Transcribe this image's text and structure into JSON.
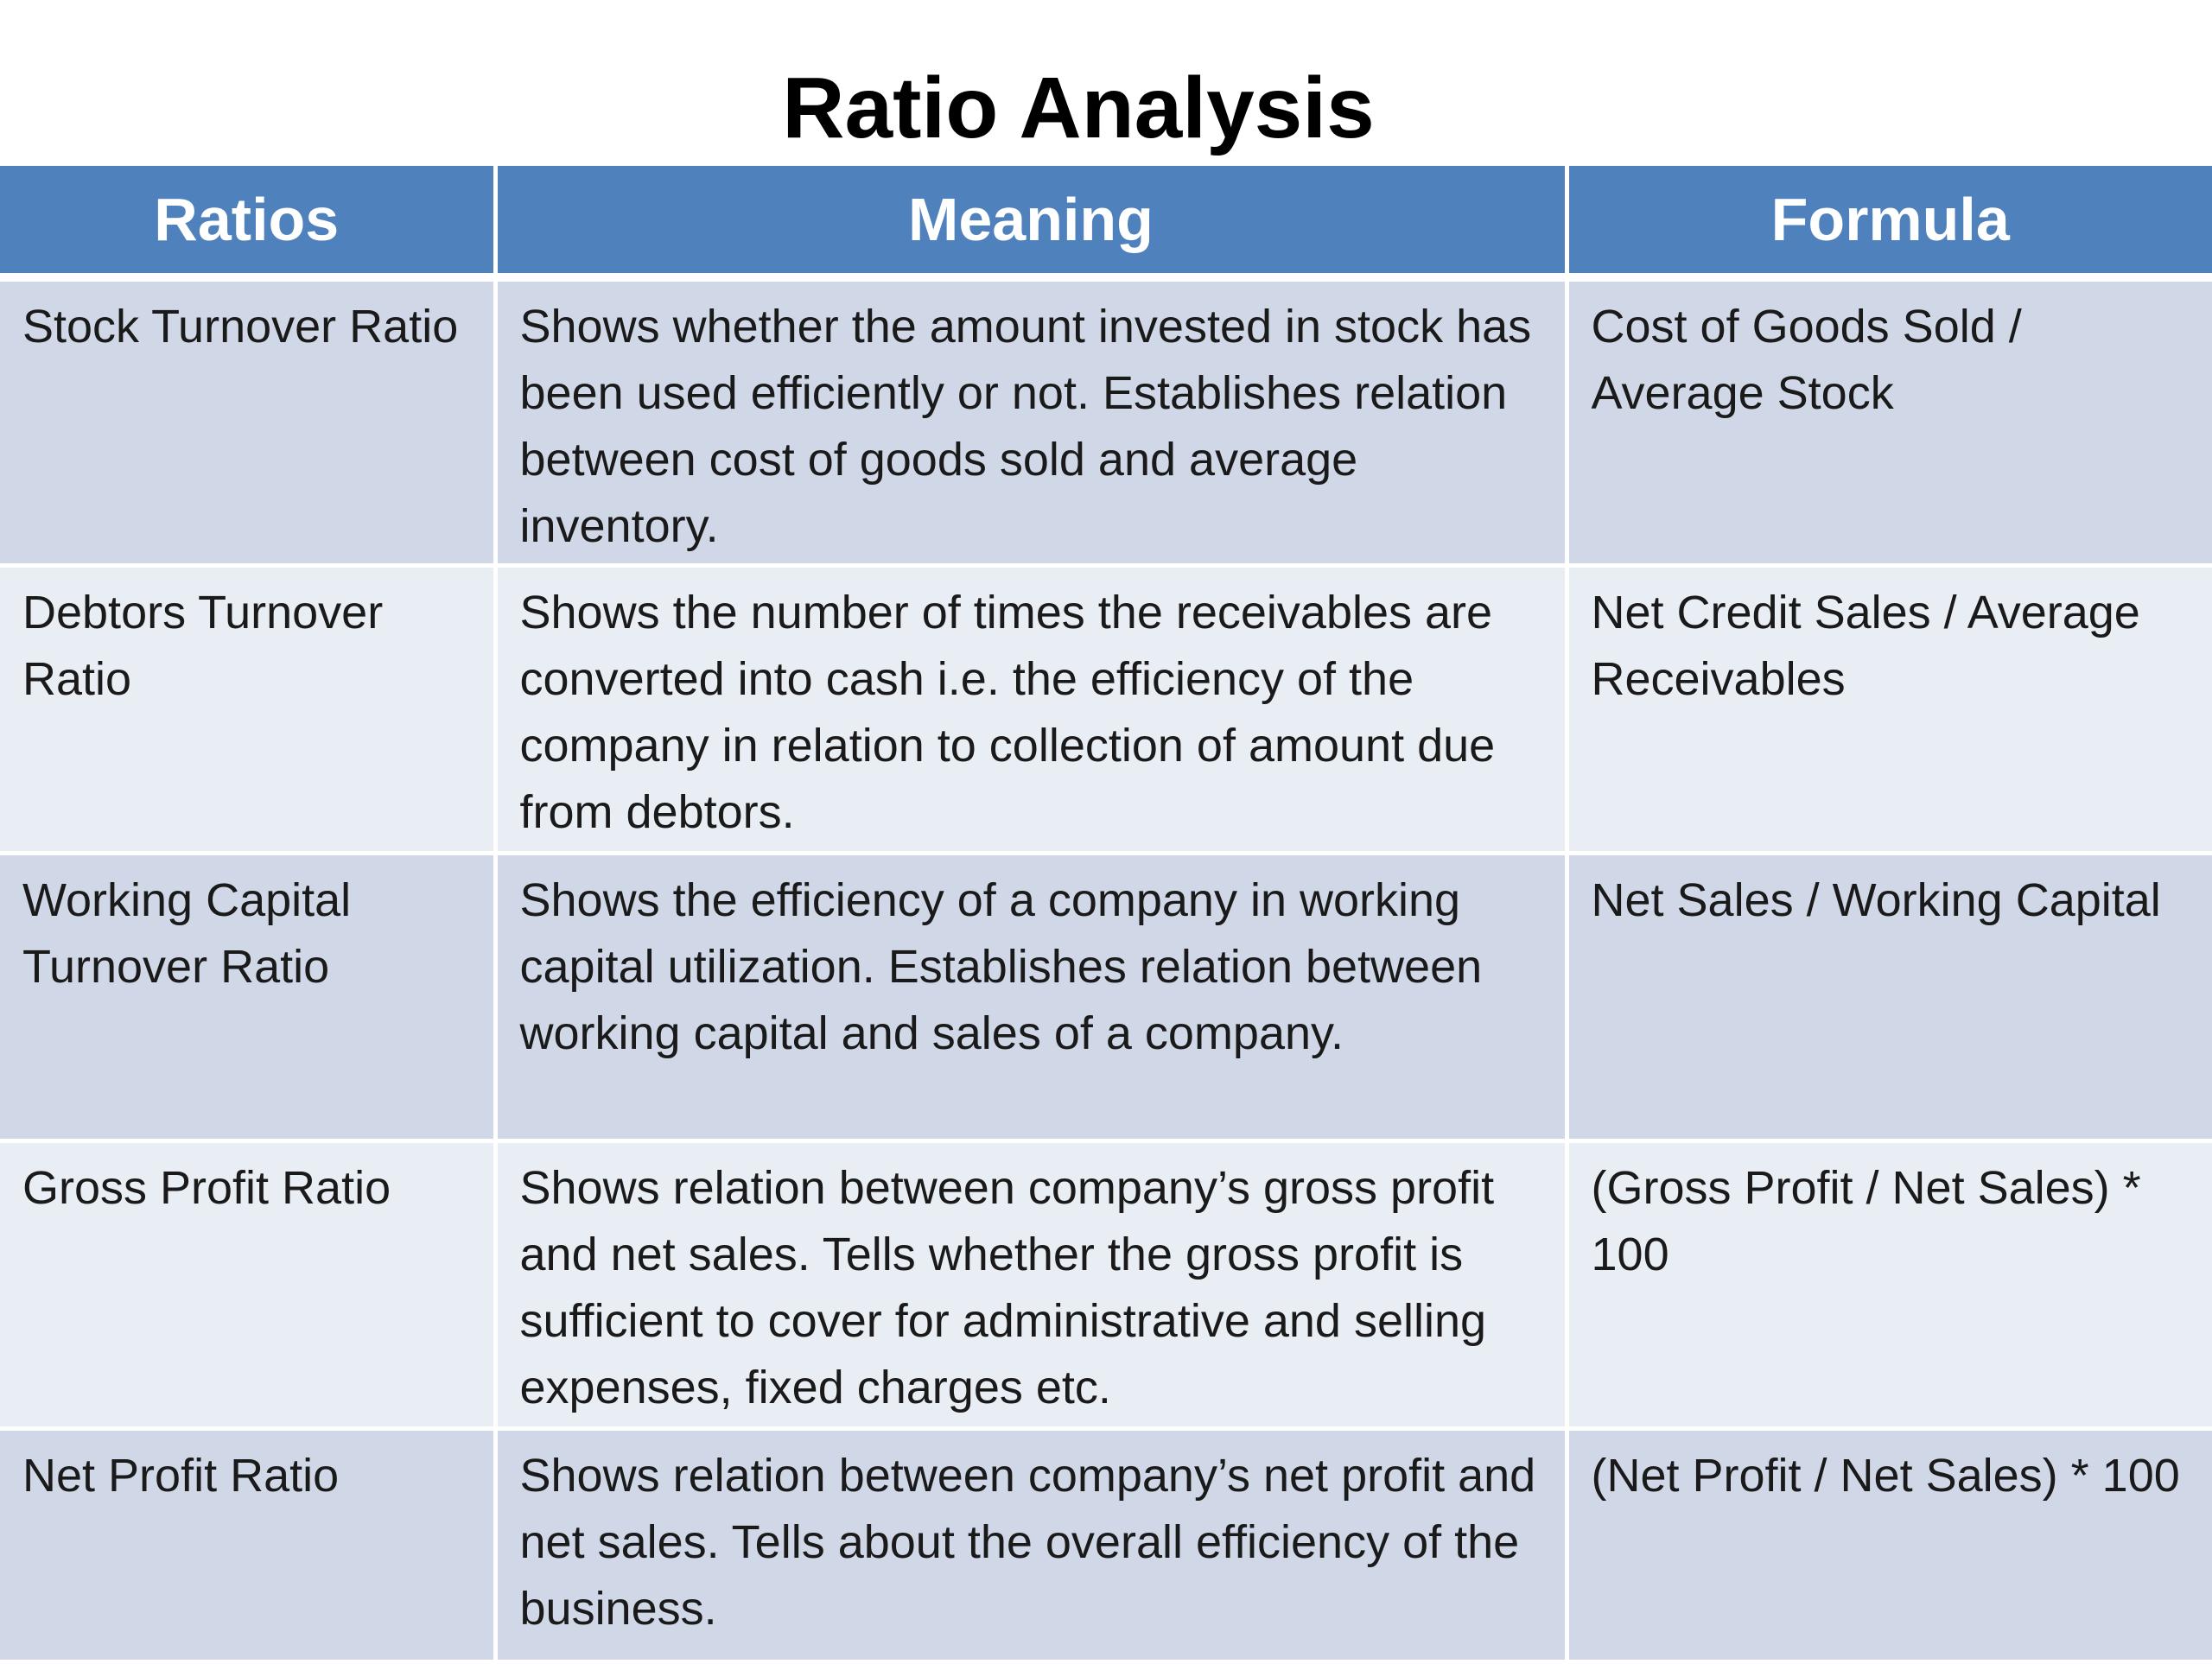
{
  "title": "Ratio Analysis",
  "table": {
    "headers": [
      "Ratios",
      "Meaning",
      "Formula"
    ],
    "rows": [
      {
        "ratio": "Stock Turnover Ratio",
        "meaning": "Shows whether the amount invested in stock has been used efficiently or not. Establishes relation between cost of goods sold and average inventory.",
        "formula": "Cost of Goods Sold / Average Stock"
      },
      {
        "ratio": "Debtors Turnover Ratio",
        "meaning": "Shows the number of times the receivables are converted into cash i.e. the efficiency of the company in relation to collection of amount due from debtors.",
        "formula": "Net Credit Sales / Average Receivables"
      },
      {
        "ratio": "Working Capital Turnover Ratio",
        "meaning": "Shows the efficiency of a company in working capital utilization. Establishes relation between working capital and sales of a company.",
        "formula": "Net Sales / Working Capital"
      },
      {
        "ratio": "Gross Profit Ratio",
        "meaning": "Shows relation between company’s gross profit and net sales. Tells whether the gross profit is sufficient to cover for administrative and selling expenses, fixed charges etc.",
        "formula": "(Gross Profit / Net Sales) * 100"
      },
      {
        "ratio": "Net Profit Ratio",
        "meaning": "Shows relation between company’s net profit and net sales. Tells about the overall efficiency of the business.",
        "formula": "(Net Profit / Net Sales) * 100"
      }
    ]
  },
  "colors": {
    "header_bg": "#4f81bd",
    "header_text": "#ffffff",
    "row_odd_bg": "#d0d8e8",
    "row_even_bg": "#e9edf4"
  }
}
